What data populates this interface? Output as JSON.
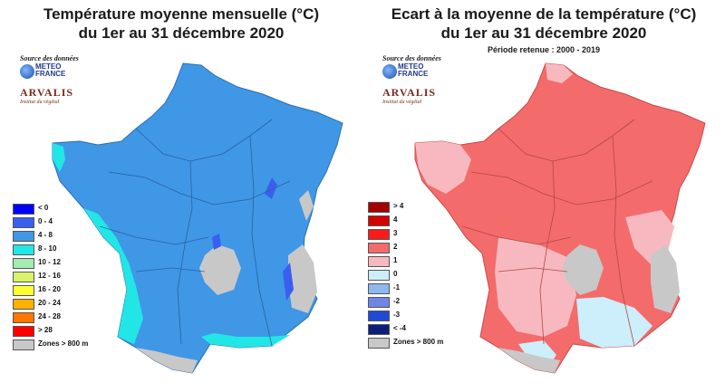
{
  "left_panel": {
    "title_line1": "Température moyenne mensuelle (°C)",
    "title_line2": "du 1er au 31 décembre 2020",
    "source_label": "Source des données",
    "logo_meteo_france": "METEO FRANCE",
    "logo_arvalis": "ARVALIS",
    "logo_arvalis_tag": "Institut du végétal",
    "map_base_color": "#3f97e6",
    "legend": [
      {
        "label": "< 0",
        "color": "#0000ff"
      },
      {
        "label": "0 - 4",
        "color": "#3a5ff0"
      },
      {
        "label": "4 - 8",
        "color": "#3f97e6"
      },
      {
        "label": "8 - 10",
        "color": "#22e6e6"
      },
      {
        "label": "10 - 12",
        "color": "#a4ecb2"
      },
      {
        "label": "12 - 16",
        "color": "#d8f26a"
      },
      {
        "label": "16 - 20",
        "color": "#ffff33"
      },
      {
        "label": "20 - 24",
        "color": "#ffb000"
      },
      {
        "label": "24 - 28",
        "color": "#ff7700"
      },
      {
        "label": "> 28",
        "color": "#ff0000"
      },
      {
        "label": "Zones > 800 m",
        "color": "#c8c8c8"
      }
    ]
  },
  "right_panel": {
    "title_line1": "Ecart à la moyenne de la température (°C)",
    "title_line2": "du 1er au 31 décembre 2020",
    "subtitle": "Période retenue : 2000 - 2019",
    "source_label": "Source des données",
    "logo_meteo_france": "METEO FRANCE",
    "logo_arvalis": "ARVALIS",
    "logo_arvalis_tag": "Institut du végétal",
    "map_base_color": "#f46b6b",
    "legend": [
      {
        "label": "> 4",
        "color": "#a50000"
      },
      {
        "label": "4",
        "color": "#d40000"
      },
      {
        "label": "3",
        "color": "#ff1a1a"
      },
      {
        "label": "2",
        "color": "#f46b6b"
      },
      {
        "label": "1",
        "color": "#f7b9bf"
      },
      {
        "label": "0",
        "color": "#cdeefb"
      },
      {
        "label": "-1",
        "color": "#8fb8ee"
      },
      {
        "label": "-2",
        "color": "#6f86e6"
      },
      {
        "label": "-3",
        "color": "#1f4ad6"
      },
      {
        "label": "< -4",
        "color": "#0b1f7a"
      },
      {
        "label": "Zones > 800 m",
        "color": "#c8c8c8"
      }
    ]
  }
}
